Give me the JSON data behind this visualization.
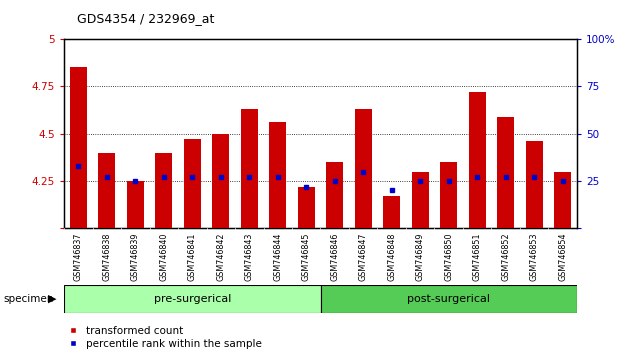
{
  "title": "GDS4354 / 232969_at",
  "samples": [
    "GSM746837",
    "GSM746838",
    "GSM746839",
    "GSM746840",
    "GSM746841",
    "GSM746842",
    "GSM746843",
    "GSM746844",
    "GSM746845",
    "GSM746846",
    "GSM746847",
    "GSM746848",
    "GSM746849",
    "GSM746850",
    "GSM746851",
    "GSM746852",
    "GSM746853",
    "GSM746854"
  ],
  "bar_values": [
    4.85,
    4.4,
    4.25,
    4.4,
    4.47,
    4.5,
    4.63,
    4.56,
    4.22,
    4.35,
    4.63,
    4.17,
    4.3,
    4.35,
    4.72,
    4.59,
    4.46,
    4.3
  ],
  "percentile_values": [
    4.33,
    4.27,
    4.25,
    4.27,
    4.27,
    4.27,
    4.27,
    4.27,
    4.22,
    4.25,
    4.3,
    4.2,
    4.25,
    4.25,
    4.27,
    4.27,
    4.27,
    4.25
  ],
  "pre_surgical_count": 9,
  "post_surgical_count": 9,
  "ylim_left": [
    4.0,
    5.0
  ],
  "ylim_right": [
    0,
    100
  ],
  "bar_color": "#cc0000",
  "percentile_color": "#0000cc",
  "bar_bottom": 4.0,
  "pre_color": "#aaffaa",
  "post_color": "#55cc55",
  "tick_bg_color": "#cccccc",
  "left_tick_color": "#cc0000",
  "right_tick_color": "#0000cc",
  "legend_red_label": "transformed count",
  "legend_blue_label": "percentile rank within the sample",
  "group_label_pre": "pre-surgerical",
  "group_label_post": "post-surgerical",
  "specimen_label": "specimen"
}
